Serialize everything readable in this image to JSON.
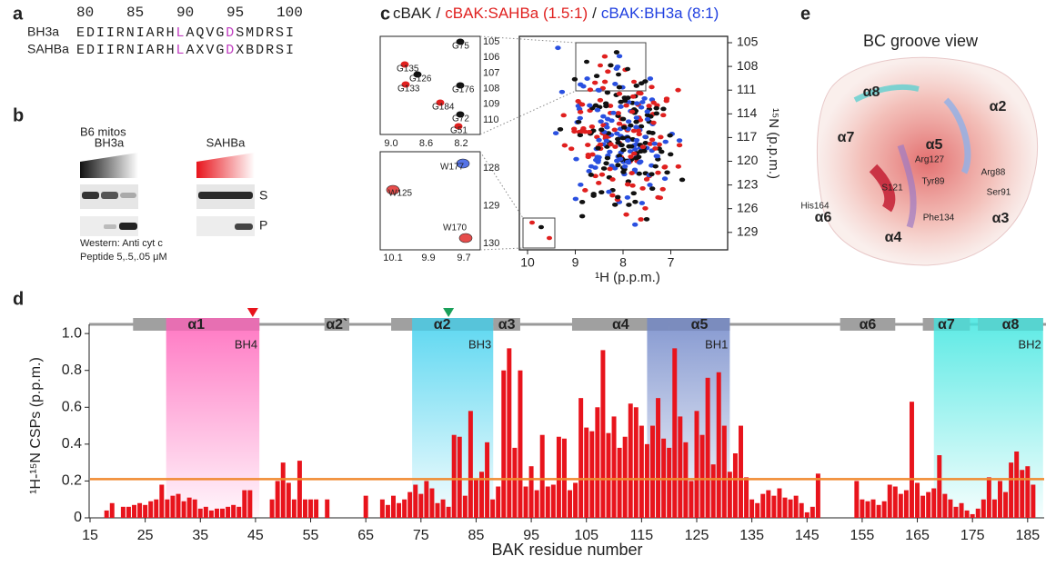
{
  "panel_labels": [
    "a",
    "b",
    "c",
    "d",
    "e"
  ],
  "panel_a": {
    "ruler": [
      "80",
      "85",
      "90",
      "95",
      "100"
    ],
    "rows": [
      {
        "name": "BH3a",
        "color": "#222222",
        "segments": [
          {
            "text": "EDIIRNIARH"
          },
          {
            "text": "L",
            "color": "#c03cc0"
          },
          {
            "text": "AQVG"
          },
          {
            "text": "D",
            "color": "#c03cc0"
          },
          {
            "text": "SMDRSI"
          }
        ]
      },
      {
        "name": "SAHBa",
        "color": "#e0201f",
        "segments": [
          {
            "text": "EDIIRNIARH"
          },
          {
            "text": "L",
            "color": "#c03cc0"
          },
          {
            "text": "AXVG"
          },
          {
            "text": "D",
            "color": "#c03cc0"
          },
          {
            "text": "XBDRSI"
          }
        ]
      }
    ]
  },
  "panel_b": {
    "header": "B6 mitos",
    "lanes": [
      {
        "name": "BH3a",
        "color": "#222222"
      },
      {
        "name": "SAHBa",
        "color": "#e0201f"
      }
    ],
    "fractions": [
      "S",
      "P"
    ],
    "notes": [
      "Western: Anti cyt c",
      "Peptide 5,.5,.05 μM"
    ]
  },
  "panel_c": {
    "title_parts": [
      {
        "text": "cBAK",
        "color": "#222222"
      },
      {
        "text": "/",
        "color": "#222222"
      },
      {
        "text": "cBAK:SAHBa (1.5:1)",
        "color": "#e0201f"
      },
      {
        "text": "/",
        "color": "#222222"
      },
      {
        "text": "cBAK:BH3a (8:1)",
        "color": "#1f3fe0"
      }
    ],
    "main": {
      "xticks": [
        "10",
        "9",
        "8",
        "7"
      ],
      "yticks": [
        "105",
        "108",
        "111",
        "114",
        "117",
        "120",
        "123",
        "126",
        "129"
      ],
      "xlabel": "¹H (p.p.m.)",
      "ylabel": "¹⁵N (p.p.m.)"
    },
    "inset1": {
      "xticks": [
        "9.0",
        "8.6",
        "8.2"
      ],
      "yticks": [
        "105",
        "106",
        "107",
        "108",
        "109",
        "110"
      ],
      "peaks": [
        "G75",
        "G135",
        "G126",
        "G133",
        "G176",
        "G184",
        "G72",
        "G51"
      ]
    },
    "inset2": {
      "xticks": [
        "10.1",
        "9.9",
        "9.7"
      ],
      "yticks": [
        "128",
        "129",
        "130"
      ],
      "peaks": [
        "W177",
        "W125",
        "W170"
      ]
    }
  },
  "panel_e": {
    "title": "BC groove view",
    "labels": [
      "α8",
      "α2",
      "α7",
      "α5",
      "Arg127",
      "Arg88",
      "Tyr89",
      "S121",
      "Ser91",
      "His164",
      "α6",
      "Phe134",
      "α3",
      "α4"
    ]
  },
  "chart_data": {
    "type": "bar",
    "xlabel": "BAK residue number",
    "ylabel": "¹H-¹⁵N CSPs (p.p.m.)",
    "color": "#e8141c",
    "x": [
      18,
      19,
      21,
      22,
      23,
      24,
      25,
      26,
      27,
      28,
      29,
      30,
      31,
      32,
      33,
      34,
      35,
      36,
      37,
      38,
      39,
      40,
      41,
      42,
      43,
      44,
      48,
      49,
      50,
      51,
      52,
      53,
      54,
      55,
      56,
      58,
      65,
      68,
      69,
      70,
      71,
      72,
      73,
      74,
      75,
      76,
      77,
      78,
      79,
      80,
      81,
      82,
      83,
      84,
      85,
      86,
      87,
      88,
      89,
      90,
      91,
      92,
      93,
      94,
      95,
      96,
      97,
      98,
      99,
      100,
      101,
      102,
      103,
      104,
      105,
      106,
      107,
      108,
      109,
      110,
      111,
      112,
      113,
      114,
      115,
      116,
      117,
      118,
      119,
      120,
      121,
      122,
      123,
      124,
      125,
      126,
      127,
      128,
      129,
      130,
      131,
      132,
      133,
      134,
      135,
      136,
      137,
      138,
      139,
      140,
      141,
      142,
      143,
      144,
      145,
      146,
      147,
      154,
      155,
      156,
      157,
      158,
      159,
      160,
      161,
      162,
      163,
      164,
      165,
      166,
      167,
      168,
      169,
      170,
      171,
      172,
      173,
      174,
      175,
      176,
      177,
      178,
      179,
      180,
      181,
      182,
      183,
      184,
      185,
      186
    ],
    "values": [
      0.04,
      0.08,
      0.06,
      0.06,
      0.07,
      0.08,
      0.07,
      0.09,
      0.1,
      0.18,
      0.1,
      0.12,
      0.13,
      0.09,
      0.11,
      0.1,
      0.05,
      0.06,
      0.04,
      0.05,
      0.05,
      0.06,
      0.07,
      0.06,
      0.15,
      0.15,
      0.1,
      0.2,
      0.3,
      0.19,
      0.1,
      0.31,
      0.1,
      0.1,
      0.1,
      0.1,
      0.12,
      0.1,
      0.07,
      0.12,
      0.08,
      0.1,
      0.14,
      0.18,
      0.13,
      0.2,
      0.16,
      0.08,
      0.1,
      0.06,
      0.45,
      0.44,
      0.12,
      0.58,
      0.21,
      0.25,
      0.41,
      0.1,
      0.17,
      0.8,
      0.92,
      0.38,
      0.8,
      0.17,
      0.28,
      0.15,
      0.45,
      0.17,
      0.18,
      0.44,
      0.43,
      0.15,
      0.19,
      0.65,
      0.49,
      0.47,
      0.6,
      0.91,
      0.46,
      0.55,
      0.38,
      0.44,
      0.62,
      0.6,
      0.5,
      0.4,
      0.5,
      0.65,
      0.43,
      0.38,
      0.92,
      0.55,
      0.41,
      0.2,
      0.58,
      0.45,
      0.76,
      0.29,
      0.79,
      0.5,
      0.25,
      0.35,
      0.5,
      0.22,
      0.1,
      0.08,
      0.13,
      0.15,
      0.12,
      0.16,
      0.11,
      0.1,
      0.12,
      0.08,
      0.03,
      0.06,
      0.24,
      0.2,
      0.1,
      0.09,
      0.1,
      0.07,
      0.09,
      0.18,
      0.17,
      0.13,
      0.15,
      0.63,
      0.19,
      0.12,
      0.14,
      0.16,
      0.34,
      0.13,
      0.1,
      0.06,
      0.08,
      0.04,
      0.02,
      0.05,
      0.1,
      0.22,
      0.1,
      0.2,
      0.14,
      0.3,
      0.36,
      0.26,
      0.28,
      0.18
    ],
    "xlim": [
      15,
      188
    ],
    "xticks": [
      15,
      25,
      35,
      45,
      55,
      65,
      75,
      85,
      95,
      105,
      115,
      125,
      135,
      145,
      155,
      165,
      175,
      185
    ],
    "ylim": [
      0,
      1.05
    ],
    "yticks": [
      0,
      0.2,
      0.4,
      0.6,
      0.8,
      {
        "value": 1,
        "label": "1.0"
      }
    ],
    "threshold": {
      "value": 0.21,
      "color": "#f08a30"
    },
    "highlights": [
      {
        "from": 28.8,
        "to": 45.7,
        "color": "#ff5fb8",
        "label": "BH4"
      },
      {
        "from": 73.4,
        "to": 88.1,
        "color": "#3fd0ee",
        "label": "BH3"
      },
      {
        "from": 116,
        "to": 131,
        "color": "#6f86c8",
        "label": "BH1"
      },
      {
        "from": 168,
        "to": 187.8,
        "color": "#3fe6e0",
        "label": "BH2"
      }
    ],
    "helices": [
      {
        "name": "α1",
        "from": 22.8,
        "to": 45.7
      },
      {
        "name": "α2`",
        "from": 57.5,
        "to": 62
      },
      {
        "name": "α2",
        "from": 69.6,
        "to": 88.1
      },
      {
        "name": "α3",
        "from": 88.1,
        "to": 93
      },
      {
        "name": "α4",
        "from": 102.4,
        "to": 120
      },
      {
        "name": "α5",
        "from": 120,
        "to": 131
      },
      {
        "name": "α6",
        "from": 151,
        "to": 161
      },
      {
        "name": "α7",
        "from": 166,
        "to": 174.5
      },
      {
        "name": "α8",
        "from": 176,
        "to": 187.8
      }
    ],
    "markers": [
      {
        "x": 44.5,
        "color": "#e8141c"
      },
      {
        "x": 80,
        "color": "#1aa05a"
      }
    ]
  }
}
